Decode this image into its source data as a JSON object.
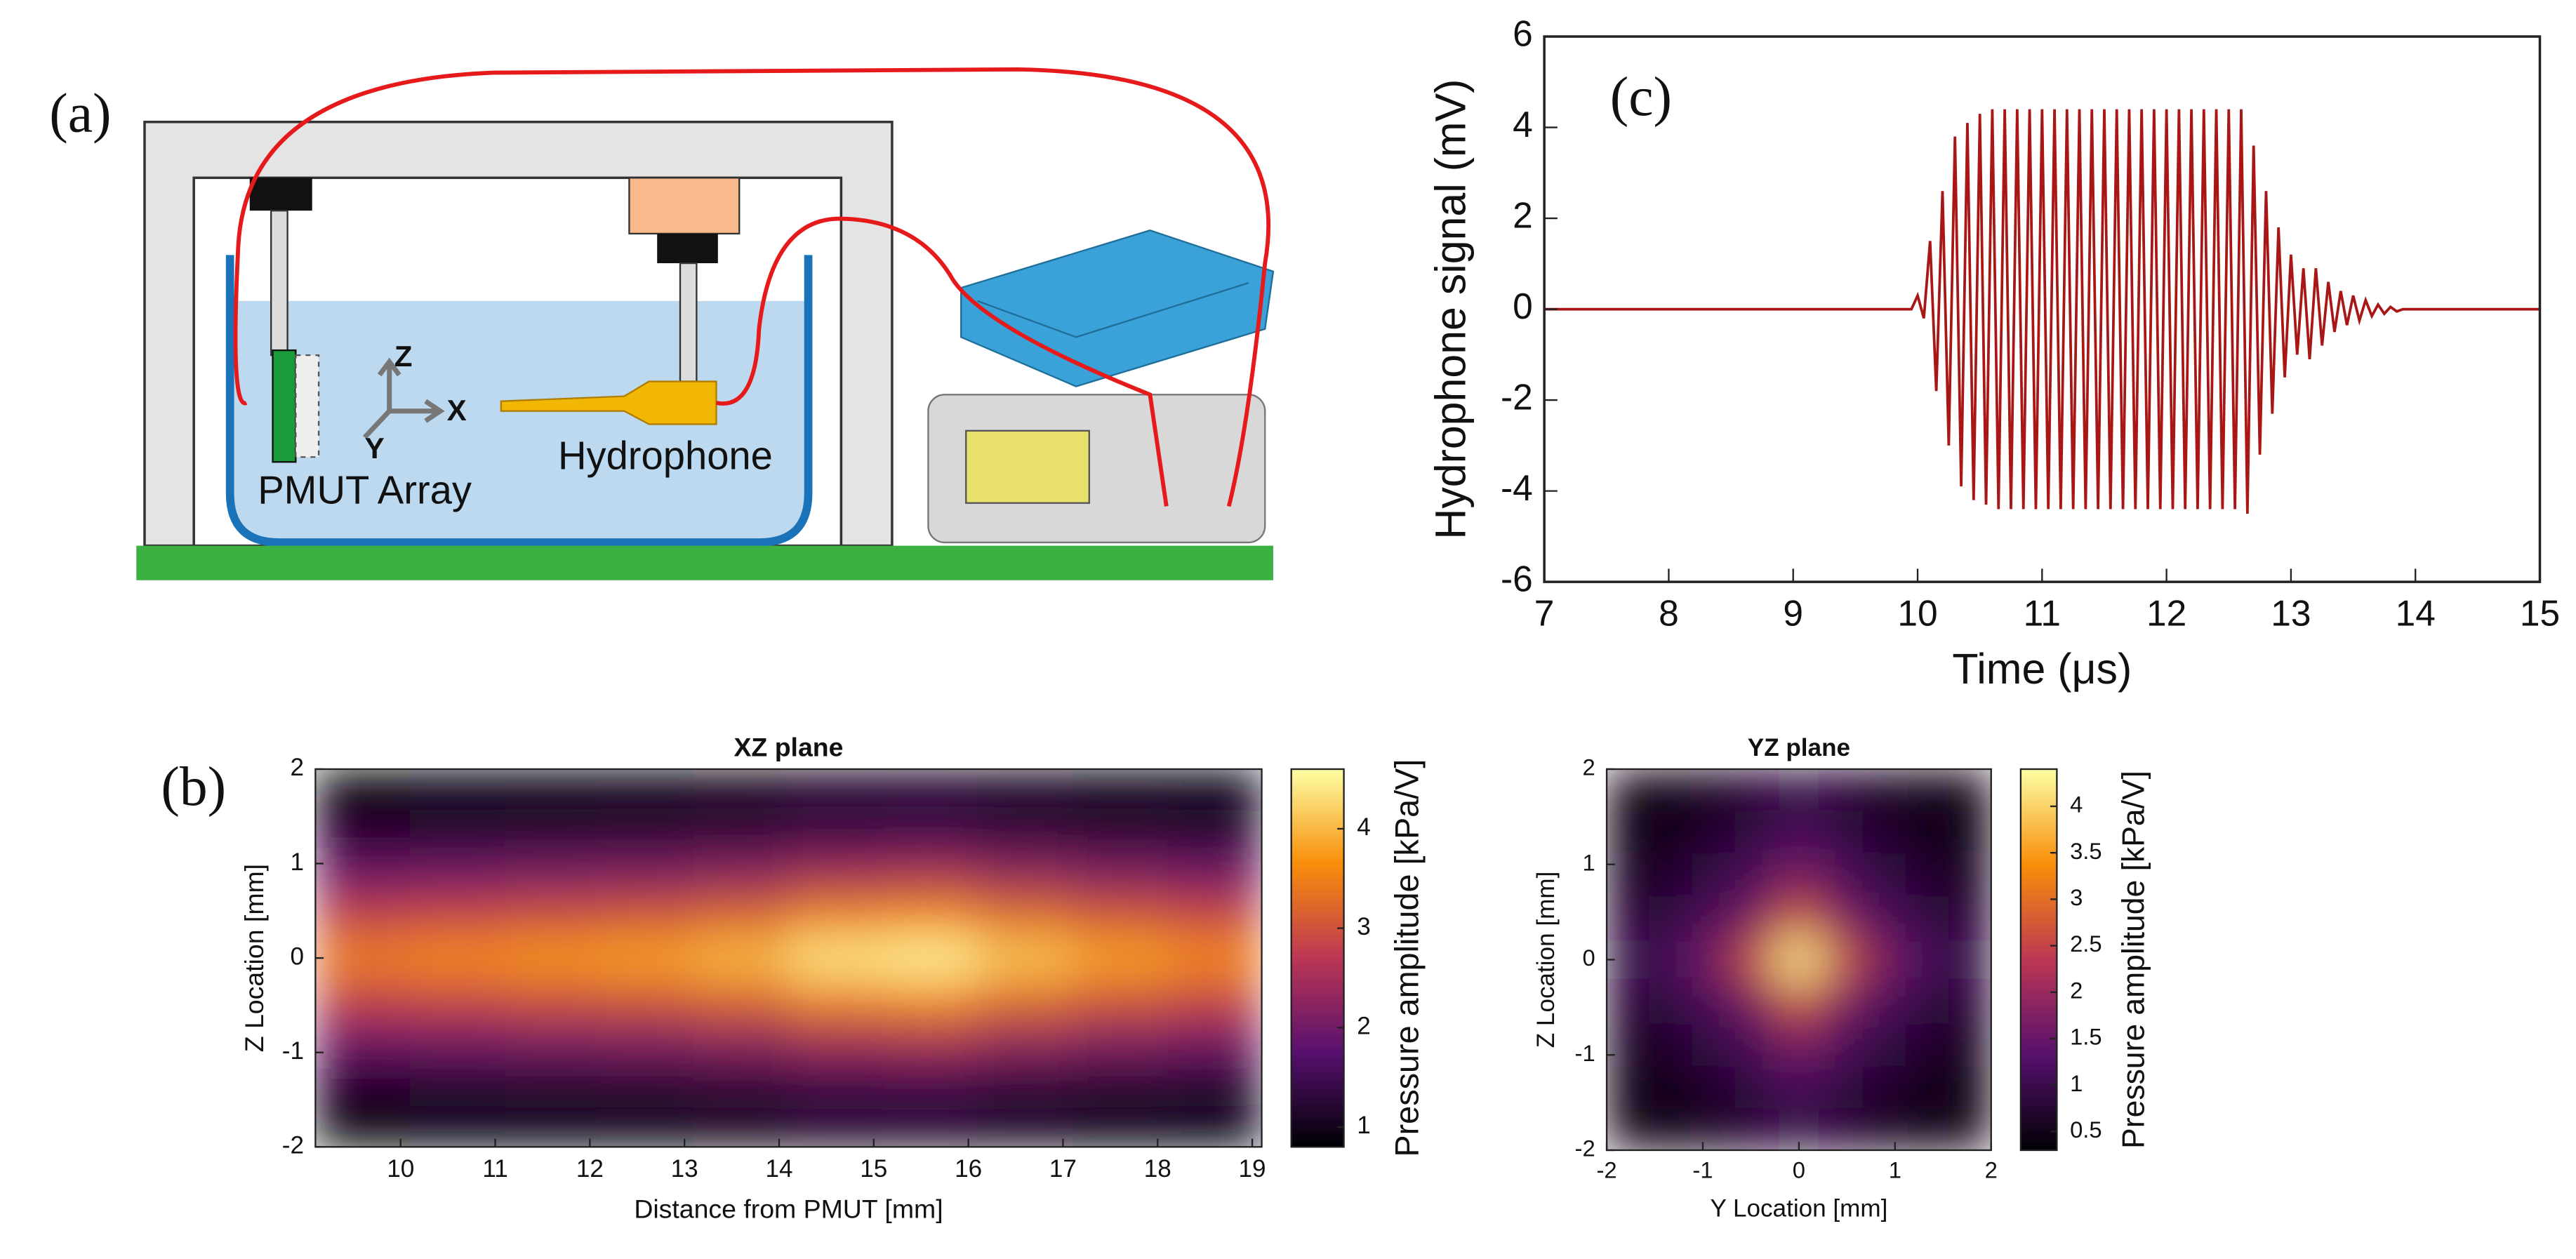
{
  "panel_labels": [
    "(a)",
    "(b)",
    "(c)"
  ],
  "diagram": {
    "labels": [
      "PMUT Array",
      "Hydrophone",
      "Z",
      "X",
      "Y"
    ]
  },
  "chart_data": [
    {
      "type": "line",
      "x_label": "Time (μs)",
      "y_label": "Hydrophone signal (mV)",
      "color": "#a81616",
      "xlim": [
        7,
        15
      ],
      "xticks": [
        7,
        8,
        9,
        10,
        11,
        12,
        13,
        14,
        15
      ],
      "ylim": [
        -6,
        6
      ],
      "yticks": [
        -6,
        -4,
        -2,
        0,
        2,
        4,
        6
      ],
      "x": [
        7,
        9.95,
        10,
        10.05,
        10.1,
        10.15,
        10.2,
        10.25,
        10.3,
        10.35,
        10.4,
        10.45,
        10.5,
        10.55,
        10.6,
        10.65,
        10.7,
        10.75,
        10.8,
        10.85,
        10.9,
        10.95,
        11,
        11.05,
        11.1,
        11.15,
        11.2,
        11.25,
        11.3,
        11.35,
        11.4,
        11.45,
        11.5,
        11.55,
        11.6,
        11.65,
        11.7,
        11.75,
        11.8,
        11.85,
        11.9,
        11.95,
        12,
        12.05,
        12.1,
        12.15,
        12.2,
        12.25,
        12.3,
        12.35,
        12.4,
        12.45,
        12.5,
        12.55,
        12.6,
        12.65,
        12.7,
        12.75,
        12.8,
        12.85,
        12.9,
        12.95,
        13,
        13.05,
        13.1,
        13.15,
        13.2,
        13.25,
        13.3,
        13.35,
        13.4,
        13.45,
        13.5,
        13.55,
        13.6,
        13.65,
        13.7,
        13.75,
        13.8,
        13.85,
        13.9,
        15
      ],
      "values": [
        0,
        0,
        0.3,
        -0.2,
        1.5,
        -1.8,
        2.6,
        -3.0,
        3.8,
        -3.9,
        4.1,
        -4.2,
        4.3,
        -4.3,
        4.4,
        -4.4,
        4.4,
        -4.4,
        4.4,
        -4.4,
        4.4,
        -4.4,
        4.4,
        -4.4,
        4.4,
        -4.4,
        4.4,
        -4.4,
        4.4,
        -4.4,
        4.4,
        -4.4,
        4.4,
        -4.4,
        4.4,
        -4.4,
        4.4,
        -4.4,
        4.4,
        -4.4,
        4.4,
        -4.4,
        4.4,
        -4.4,
        4.4,
        -4.4,
        4.4,
        -4.4,
        4.4,
        -4.4,
        4.4,
        -4.4,
        4.4,
        -4.4,
        4.4,
        -4.5,
        3.6,
        -3.2,
        2.6,
        -2.3,
        1.8,
        -1.5,
        1.2,
        -1,
        0.9,
        -1.1,
        0.9,
        -0.8,
        0.6,
        -0.5,
        0.4,
        -0.35,
        0.3,
        -0.25,
        0.2,
        -0.15,
        0.1,
        -0.1,
        0.05,
        -0.05,
        0,
        0
      ]
    },
    {
      "type": "heatmap",
      "title": "XZ plane",
      "x_label": "Distance from PMUT [mm]",
      "y_label": "Z Location [mm]",
      "colorbar_label": "Pressure amplitude [kPa/V]",
      "colormap": "inferno",
      "xlim": [
        9.1,
        19.1
      ],
      "xticks": [
        10,
        11,
        12,
        13,
        14,
        15,
        16,
        17,
        18,
        19
      ],
      "ylim": [
        -2,
        2
      ],
      "yticks": [
        -2,
        -1,
        0,
        1,
        2
      ],
      "clim": [
        0.8,
        4.6
      ],
      "cticks": [
        1,
        2,
        3,
        4
      ],
      "values": [
        [
          0.8,
          0.83,
          0.85,
          0.87,
          0.92,
          1.01,
          1.04,
          0.94,
          0.87,
          0.83
        ],
        [
          1.16,
          1.19,
          1.22,
          1.25,
          1.32,
          1.45,
          1.49,
          1.35,
          1.25,
          1.19
        ],
        [
          1.93,
          1.98,
          2.04,
          2.09,
          2.2,
          2.42,
          2.48,
          2.26,
          2.09,
          1.98
        ],
        [
          2.8,
          2.88,
          2.96,
          3.04,
          3.2,
          3.52,
          3.6,
          3.28,
          3.04,
          2.88
        ],
        [
          3.5,
          3.6,
          3.7,
          3.8,
          4.0,
          4.4,
          4.5,
          4.1,
          3.8,
          3.6
        ],
        [
          2.8,
          2.88,
          2.96,
          3.04,
          3.2,
          3.52,
          3.6,
          3.28,
          3.04,
          2.88
        ],
        [
          1.93,
          1.98,
          2.04,
          2.09,
          2.2,
          2.42,
          2.48,
          2.26,
          2.09,
          1.98
        ],
        [
          1.16,
          1.19,
          1.22,
          1.25,
          1.32,
          1.45,
          1.49,
          1.35,
          1.25,
          1.19
        ],
        [
          0.8,
          0.83,
          0.85,
          0.87,
          0.92,
          1.01,
          1.04,
          0.94,
          0.87,
          0.83
        ]
      ]
    },
    {
      "type": "heatmap",
      "title": "YZ plane",
      "x_label": "Y Location [mm]",
      "y_label": "Z Location [mm]",
      "colorbar_label": "Pressure amplitude [kPa/V]",
      "colormap": "inferno",
      "xlim": [
        -2,
        2
      ],
      "xticks": [
        -2,
        -1,
        0,
        1,
        2
      ],
      "ylim": [
        -2,
        2
      ],
      "yticks": [
        -2,
        -1,
        0,
        1,
        2
      ],
      "clim": [
        0.3,
        4.4
      ],
      "cticks": [
        0.5,
        1,
        1.5,
        2,
        2.5,
        3,
        3.5,
        4
      ],
      "values": [
        [
          0.38,
          0.45,
          0.55,
          0.7,
          0.9,
          0.7,
          0.55,
          0.45,
          0.38
        ],
        [
          0.45,
          0.55,
          0.7,
          0.9,
          1.2,
          0.9,
          0.7,
          0.55,
          0.45
        ],
        [
          0.55,
          0.7,
          0.9,
          1.2,
          1.7,
          1.2,
          0.9,
          0.7,
          0.55
        ],
        [
          0.7,
          0.9,
          1.2,
          1.7,
          2.7,
          1.7,
          1.2,
          0.9,
          0.7
        ],
        [
          0.9,
          1.2,
          1.7,
          2.7,
          4.3,
          2.7,
          1.7,
          1.2,
          0.9
        ],
        [
          0.7,
          0.9,
          1.2,
          1.7,
          2.7,
          1.7,
          1.2,
          0.9,
          0.7
        ],
        [
          0.55,
          0.7,
          0.9,
          1.2,
          1.7,
          1.2,
          0.9,
          0.7,
          0.55
        ],
        [
          0.45,
          0.55,
          0.7,
          0.9,
          1.2,
          0.9,
          0.7,
          0.55,
          0.45
        ],
        [
          0.38,
          0.45,
          0.55,
          0.7,
          0.9,
          0.7,
          0.55,
          0.45,
          0.38
        ]
      ]
    }
  ]
}
